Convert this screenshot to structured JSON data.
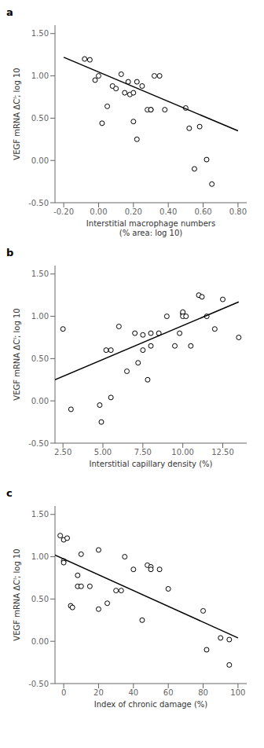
{
  "chart_data": [
    {
      "type": "scatter",
      "title": "a",
      "xlabel": "Interstitial macrophage numbers\n(% area: log 10)",
      "ylabel": "VEGF mRNA ΔCᴵ; log 10",
      "series": [
        {
          "type": "scatter",
          "marker": "open_circle",
          "color": "black",
          "x": [
            -0.08,
            -0.05,
            -0.02,
            0.0,
            0.02,
            0.05,
            0.08,
            0.1,
            0.13,
            0.15,
            0.17,
            0.18,
            0.2,
            0.2,
            0.22,
            0.22,
            0.25,
            0.28,
            0.3,
            0.3,
            0.32,
            0.35,
            0.38,
            0.5,
            0.52,
            0.55,
            0.58,
            0.62,
            0.65
          ],
          "values": [
            1.2,
            1.19,
            0.95,
            1.0,
            0.44,
            0.64,
            0.88,
            0.85,
            1.02,
            0.8,
            0.93,
            0.78,
            0.8,
            0.46,
            0.25,
            0.93,
            0.88,
            0.6,
            0.6,
            0.6,
            1.0,
            1.0,
            0.6,
            0.62,
            0.38,
            -0.1,
            0.4,
            0.01,
            -0.28
          ]
        },
        {
          "type": "line",
          "color": "black",
          "x": [
            -0.2,
            0.8
          ],
          "values": [
            1.22,
            0.35
          ]
        }
      ],
      "xlim": [
        -0.25,
        0.85
      ],
      "ylim": [
        -0.5,
        1.6
      ],
      "xticks": [
        {
          "value": -0.2,
          "label": "-0.20"
        },
        {
          "value": 0,
          "label": "0.00"
        },
        {
          "value": 0.2,
          "label": "0.20"
        },
        {
          "value": 0.4,
          "label": "0.40"
        },
        {
          "value": 0.6,
          "label": "0.60"
        },
        {
          "value": 0.8,
          "label": "0.80"
        }
      ],
      "yticks": [
        {
          "value": -0.5,
          "label": "-0.50"
        },
        {
          "value": 0,
          "label": "0.00"
        },
        {
          "value": 0.5,
          "label": "0.50"
        },
        {
          "value": 1,
          "label": "1.00"
        },
        {
          "value": 1.5,
          "label": "1.50"
        }
      ]
    },
    {
      "type": "scatter",
      "title": "b",
      "xlabel": "Interstitial capillary density (%)",
      "ylabel": "VEGF mRNA ΔCᴵ; log 10",
      "series": [
        {
          "type": "scatter",
          "marker": "open_circle",
          "color": "black",
          "x": [
            2.5,
            3.0,
            4.8,
            4.9,
            5.2,
            5.5,
            5.5,
            6.0,
            6.5,
            7.0,
            7.2,
            7.5,
            7.5,
            7.8,
            8.0,
            8.0,
            8.5,
            9.0,
            9.5,
            9.8,
            10.0,
            10.0,
            10.0,
            10.2,
            10.5,
            11.0,
            11.2,
            11.5,
            12.0,
            12.5,
            13.5
          ],
          "values": [
            0.85,
            -0.1,
            -0.05,
            -0.25,
            0.6,
            0.6,
            0.04,
            0.88,
            0.35,
            0.8,
            0.45,
            0.78,
            0.6,
            0.25,
            0.8,
            0.65,
            0.8,
            1.0,
            0.65,
            0.8,
            1.03,
            1.05,
            1.0,
            1.0,
            0.65,
            1.25,
            1.23,
            1.0,
            0.85,
            1.2,
            0.75
          ]
        },
        {
          "type": "line",
          "color": "black",
          "x": [
            2.0,
            13.5
          ],
          "values": [
            0.25,
            1.17
          ]
        }
      ],
      "xlim": [
        2.0,
        14.0
      ],
      "ylim": [
        -0.5,
        1.6
      ],
      "xticks": [
        {
          "value": 2.5,
          "label": "2.50"
        },
        {
          "value": 5,
          "label": "5.00"
        },
        {
          "value": 7.5,
          "label": "7.50"
        },
        {
          "value": 10,
          "label": "10.00"
        },
        {
          "value": 12.5,
          "label": "12.50"
        }
      ],
      "yticks": [
        {
          "value": -0.5,
          "label": "-0.50"
        },
        {
          "value": 0,
          "label": "0.00"
        },
        {
          "value": 0.5,
          "label": "0.50"
        },
        {
          "value": 1,
          "label": "1.00"
        },
        {
          "value": 1.5,
          "label": "1.50"
        }
      ]
    },
    {
      "type": "scatter",
      "title": "c",
      "xlabel": "Index of chronic damage (%)",
      "ylabel": "VEGF mRNA ΔCᴵ; log 10",
      "series": [
        {
          "type": "scatter",
          "marker": "open_circle",
          "color": "black",
          "x": [
            -2,
            0,
            0,
            0,
            2,
            4,
            5,
            8,
            8,
            10,
            10,
            15,
            20,
            20,
            25,
            30,
            33,
            35,
            40,
            45,
            48,
            50,
            50,
            55,
            60,
            80,
            82,
            90,
            95,
            95
          ],
          "values": [
            1.25,
            0.95,
            0.93,
            1.2,
            1.22,
            0.42,
            0.4,
            0.78,
            0.65,
            1.03,
            0.65,
            0.65,
            0.38,
            1.08,
            0.45,
            0.6,
            0.6,
            1.0,
            0.85,
            0.25,
            0.9,
            0.88,
            0.85,
            0.85,
            0.62,
            0.36,
            -0.1,
            0.04,
            -0.28,
            0.02
          ]
        },
        {
          "type": "line",
          "color": "black",
          "x": [
            -5,
            100
          ],
          "values": [
            1.02,
            0.04
          ]
        }
      ],
      "xlim": [
        -5,
        105
      ],
      "ylim": [
        -0.5,
        1.6
      ],
      "xticks": [
        0,
        20,
        40,
        60,
        80,
        100
      ],
      "yticks": [
        {
          "value": -0.5,
          "label": "-0.50"
        },
        {
          "value": 0,
          "label": "0.00"
        },
        {
          "value": 0.5,
          "label": "0.50"
        },
        {
          "value": 1,
          "label": "1.00"
        },
        {
          "value": 1.5,
          "label": "1.50"
        }
      ]
    }
  ]
}
